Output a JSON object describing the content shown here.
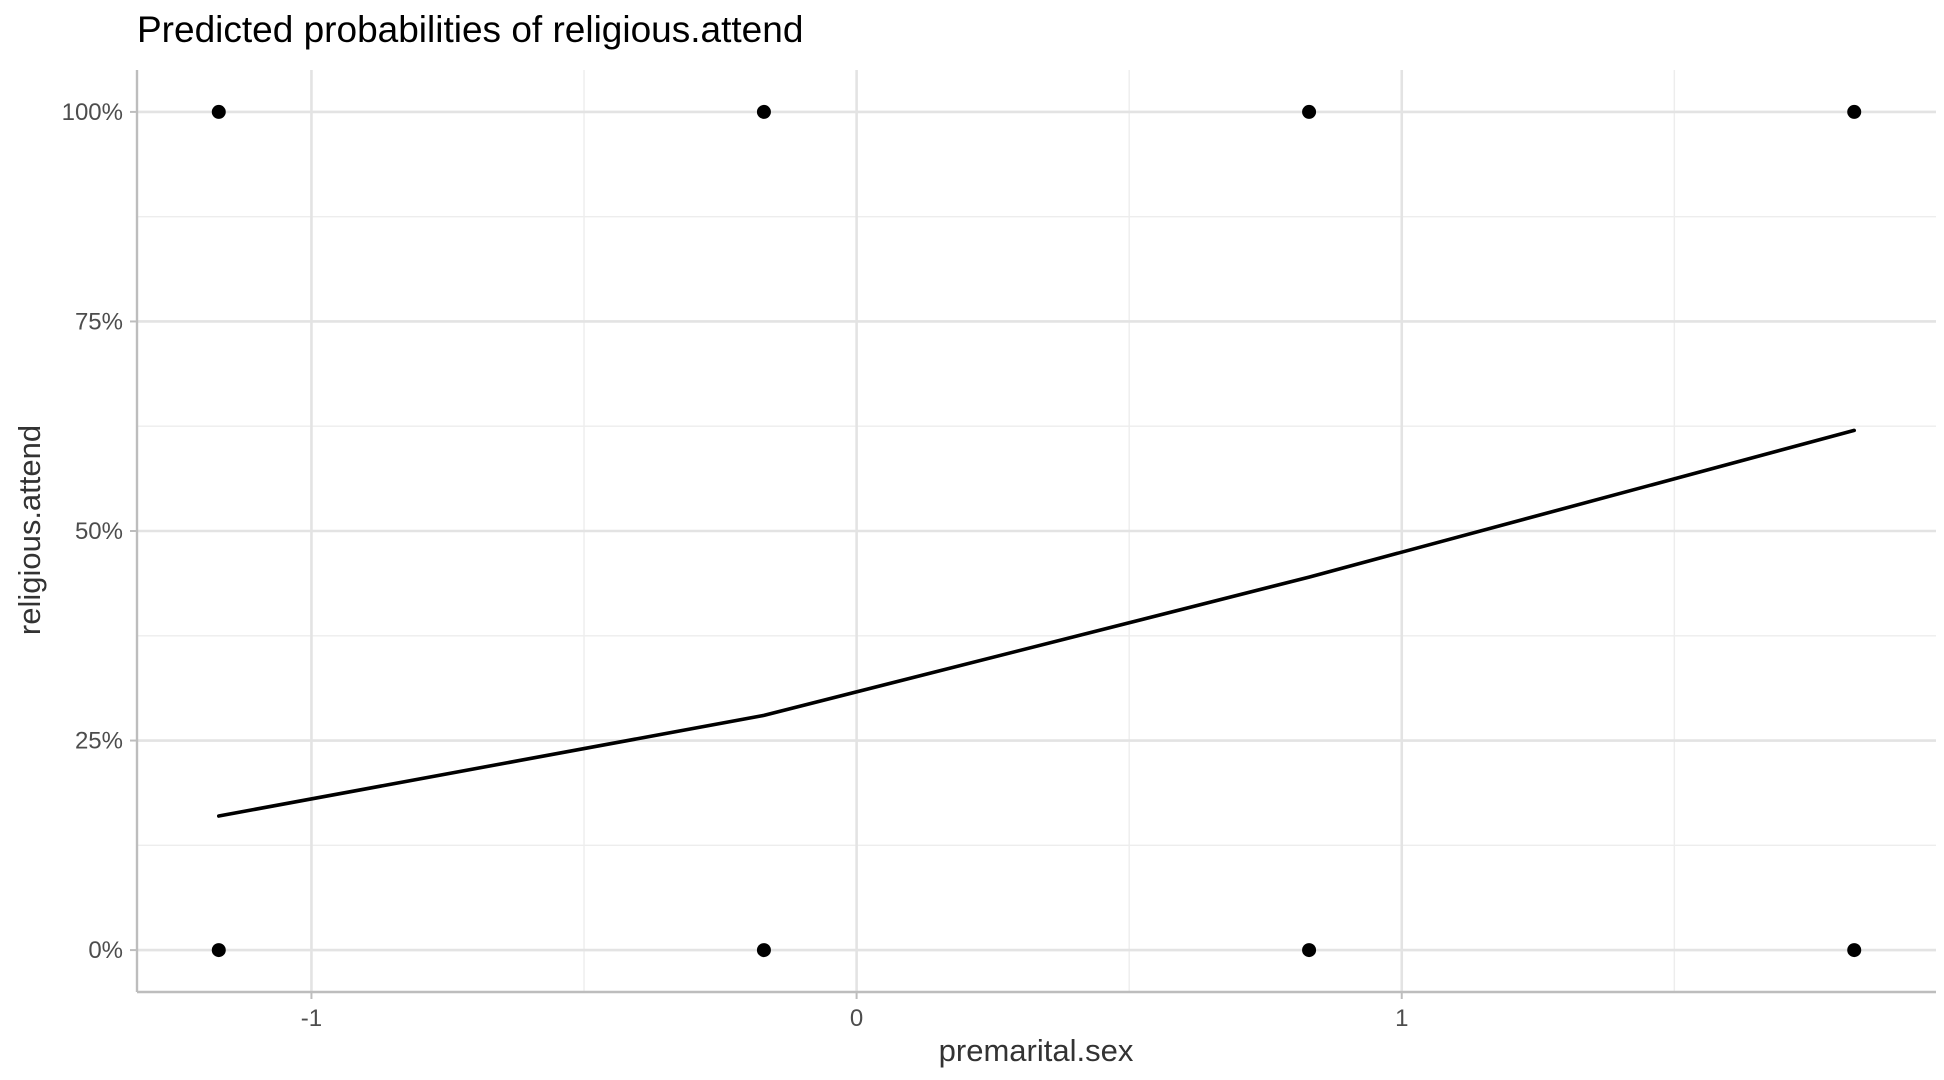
{
  "chart_data": {
    "type": "line",
    "title": "Predicted probabilities of religious.attend",
    "xlabel": "premarital.sex",
    "ylabel": "religious.attend",
    "xlim": [
      -1.32,
      1.98
    ],
    "ylim": [
      -0.05,
      1.05
    ],
    "x_ticks": [
      -1,
      0,
      1
    ],
    "x_tick_labels": [
      "-1",
      "0",
      "1"
    ],
    "x_minor_ticks": [
      -0.5,
      0.5,
      1.5
    ],
    "y_ticks": [
      0,
      0.25,
      0.5,
      0.75,
      1.0
    ],
    "y_tick_labels": [
      "0%",
      "25%",
      "50%",
      "75%",
      "100%"
    ],
    "y_minor_ticks": [
      0.125,
      0.375,
      0.625,
      0.875
    ],
    "grid": true,
    "series": [
      {
        "type": "line",
        "color": "#000000",
        "x": [
          -1.17,
          -0.17,
          0.83,
          1.83
        ],
        "y": [
          0.16,
          0.28,
          0.445,
          0.62
        ]
      },
      {
        "type": "scatter",
        "color": "#000000",
        "x": [
          -1.17,
          -1.17,
          -0.17,
          -0.17,
          0.83,
          0.83,
          1.83,
          1.83
        ],
        "y": [
          1,
          0,
          1,
          0,
          1,
          0,
          1,
          0
        ]
      }
    ]
  }
}
